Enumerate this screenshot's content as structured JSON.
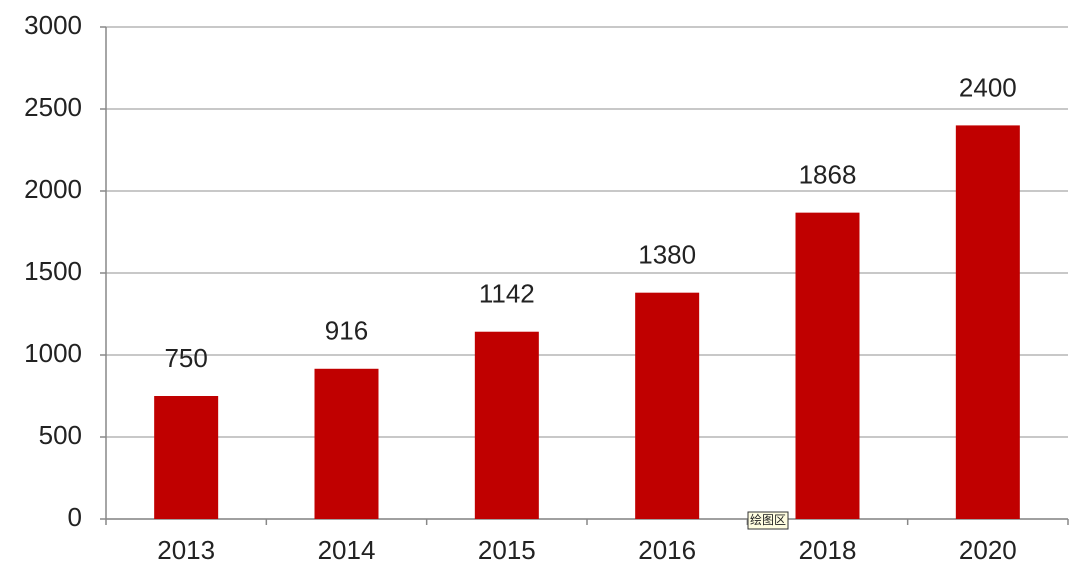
{
  "chart_data": {
    "type": "bar",
    "categories": [
      "2013",
      "2014",
      "2015",
      "2016",
      "2018",
      "2020"
    ],
    "values": [
      750,
      916,
      1142,
      1380,
      1868,
      2400
    ],
    "color": "#c00000",
    "ylim": [
      0,
      3000
    ],
    "yticks": [
      0,
      500,
      1000,
      1500,
      2000,
      2500,
      3000
    ],
    "grid": true,
    "annotation": "绘图区"
  }
}
